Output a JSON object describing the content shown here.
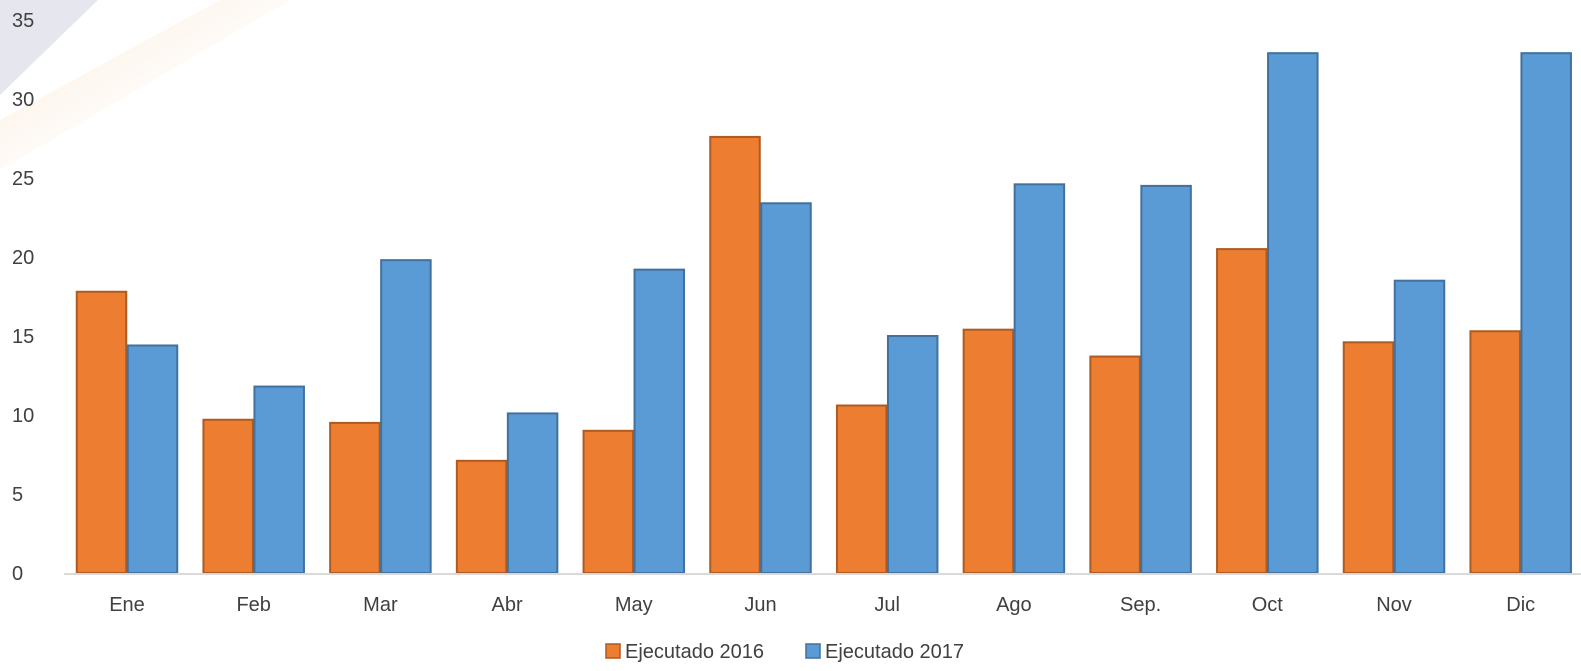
{
  "chart_data": {
    "type": "bar",
    "categories": [
      "Ene",
      "Feb",
      "Mar",
      "Abr",
      "May",
      "Jun",
      "Jul",
      "Ago",
      "Sep.",
      "Oct",
      "Nov",
      "Dic"
    ],
    "series": [
      {
        "name": "Ejecutado 2016",
        "color": "#ED7D31",
        "stroke": "#AE5A21",
        "values": [
          17.8,
          9.7,
          9.5,
          7.1,
          9.0,
          27.6,
          10.6,
          15.4,
          13.7,
          20.5,
          14.6,
          15.3
        ]
      },
      {
        "name": "Ejecutado 2017",
        "color": "#5B9BD5",
        "stroke": "#41719C",
        "values": [
          14.4,
          11.8,
          19.8,
          10.1,
          19.2,
          23.4,
          15.0,
          24.6,
          24.5,
          32.9,
          18.5,
          32.9
        ]
      }
    ],
    "ylim": [
      0,
      35
    ],
    "yticks": [
      0,
      5,
      10,
      15,
      20,
      25,
      30,
      35
    ],
    "gridlines": false,
    "legend_position": "bottom"
  }
}
